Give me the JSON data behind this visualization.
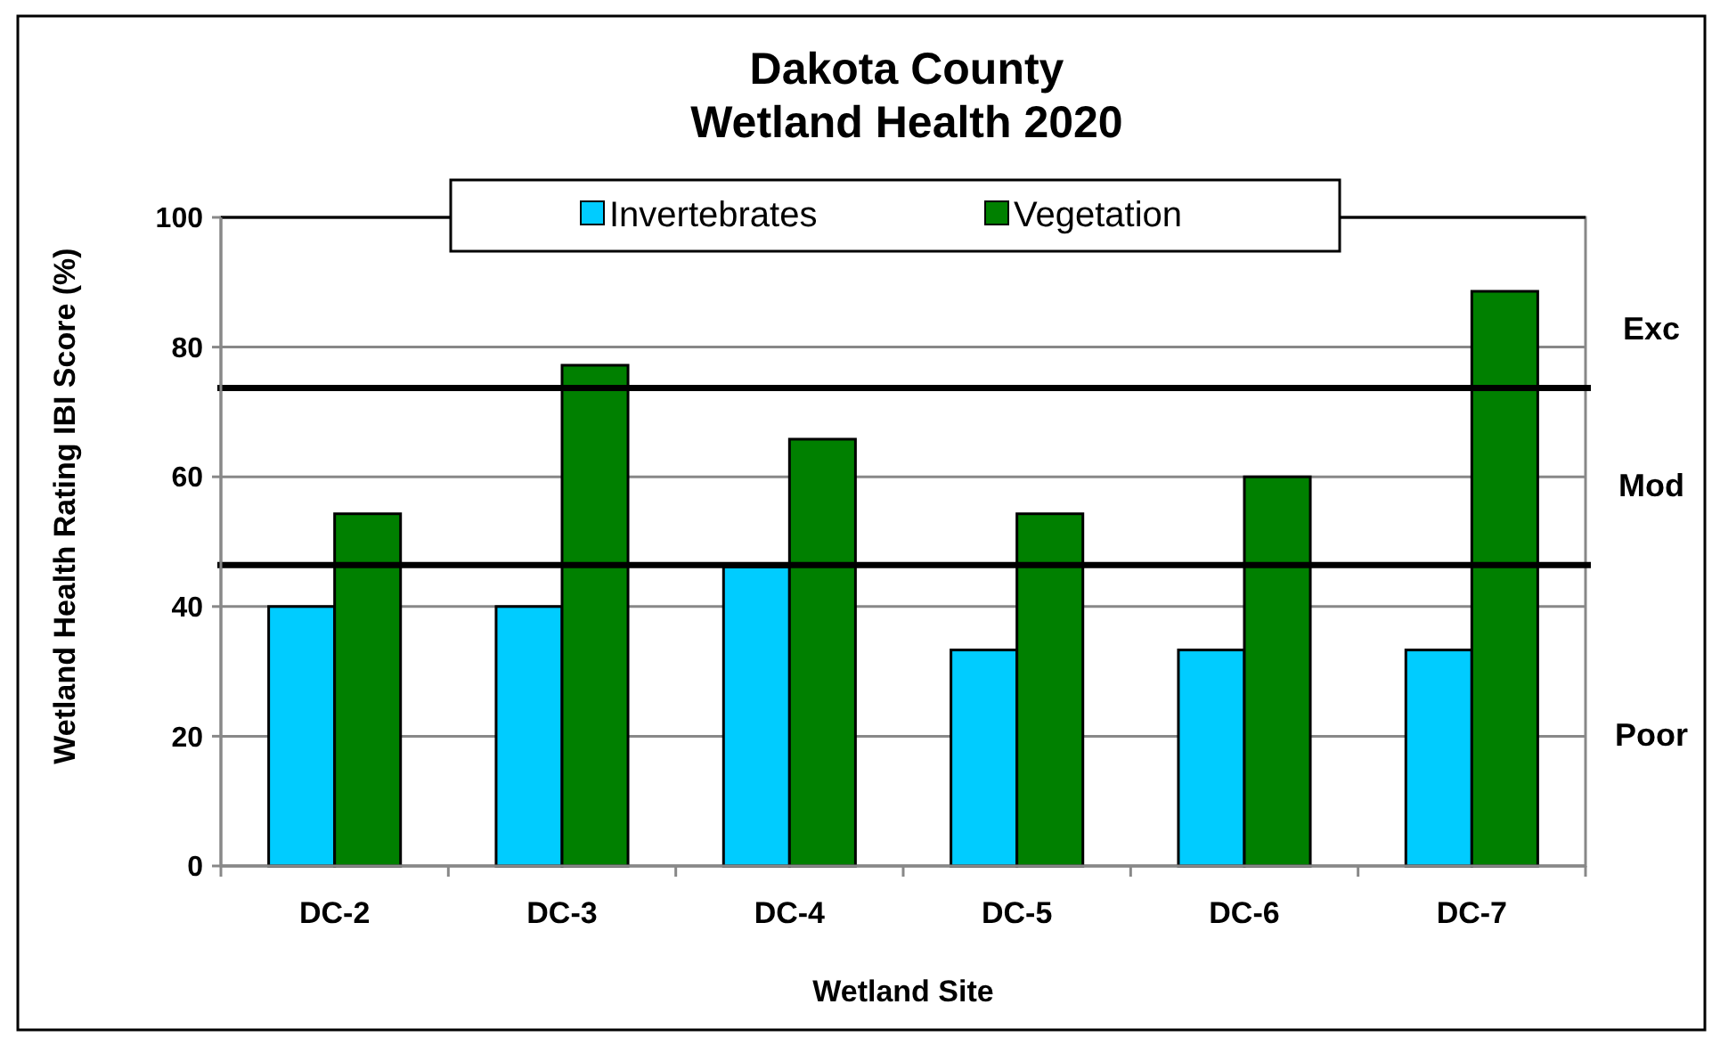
{
  "chart_data": {
    "type": "bar",
    "title": "Dakota County\nWetland Health 2020",
    "xlabel": "Wetland Site",
    "ylabel": "Wetland Health Rating IBI Score (%)",
    "categories": [
      "DC-2",
      "DC-3",
      "DC-4",
      "DC-5",
      "DC-6",
      "DC-7"
    ],
    "series": [
      {
        "name": "Invertebrates",
        "color": "#00ccff",
        "values": [
          40,
          40,
          46.1,
          33.3,
          33.3,
          33.3
        ]
      },
      {
        "name": "Vegetation",
        "color": "#008000",
        "values": [
          54.3,
          77.2,
          65.8,
          54.3,
          60,
          88.6
        ]
      }
    ],
    "ylim": [
      0,
      100
    ],
    "yticks": [
      0,
      20,
      40,
      60,
      80,
      100
    ],
    "grid": "y",
    "legend": "top",
    "ref_lines": [
      {
        "axis": "y",
        "value": 73.7,
        "color": "#000000"
      },
      {
        "axis": "y",
        "value": 46.4,
        "color": "#000000"
      }
    ],
    "annotations": [
      "Exc",
      "Mod",
      "Poor"
    ]
  }
}
